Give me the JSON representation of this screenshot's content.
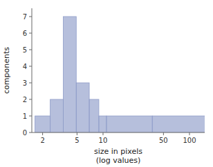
{
  "chart_data": {
    "type": "bar",
    "log": "x",
    "x": [
      2,
      3,
      4,
      6,
      8,
      10,
      12,
      115
    ],
    "values": [
      1,
      2,
      7,
      3,
      2,
      1,
      1,
      1
    ],
    "color": "#8f9dc9",
    "xlabel": "size in pixels\n(log values)",
    "ylabel": "components",
    "xlim": [
      1.5,
      150
    ],
    "xticks": [
      2,
      5,
      10,
      50,
      100
    ],
    "ylim": [
      0,
      7.5
    ],
    "yticks": [
      0,
      1,
      2,
      3,
      4,
      5,
      6,
      7
    ],
    "grid": false
  }
}
